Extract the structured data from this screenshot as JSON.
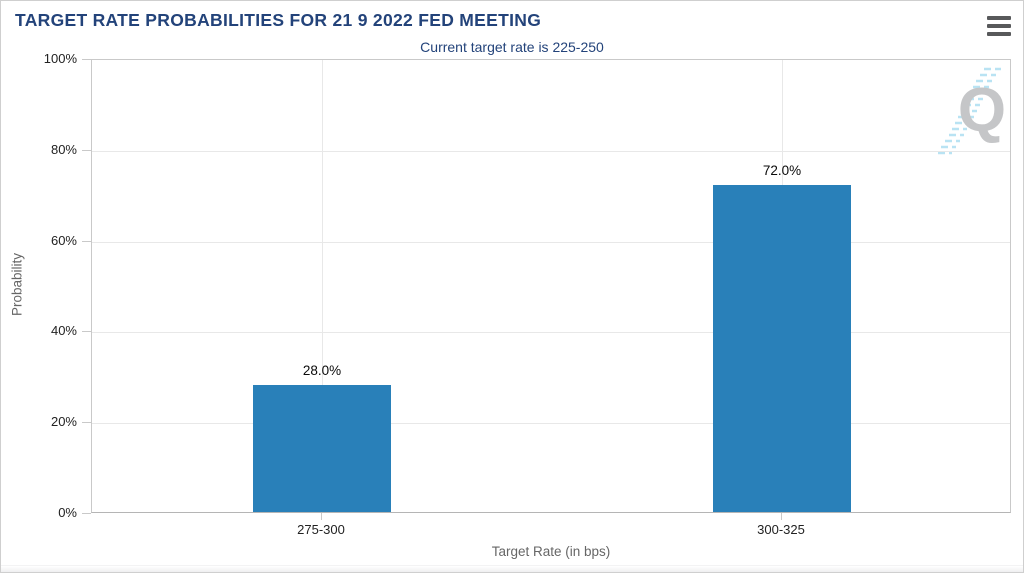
{
  "header": {
    "title": "TARGET RATE PROBABILITIES FOR 21 9 2022 FED MEETING",
    "menu_icon": "hamburger"
  },
  "chart_data": {
    "type": "bar",
    "subtitle": "Current target rate is 225-250",
    "categories": [
      "275-300",
      "300-325"
    ],
    "values": [
      28.0,
      72.0
    ],
    "value_labels": [
      "28.0%",
      "72.0%"
    ],
    "xlabel": "Target Rate (in bps)",
    "ylabel": "Probability",
    "ylim": [
      0,
      100
    ],
    "y_tick_labels": [
      "100%",
      "80%",
      "60%",
      "40%",
      "20%",
      "0%"
    ],
    "grid": true,
    "legend_position": "none",
    "bar_color": "#2980b9"
  },
  "watermark": {
    "letter": "Q"
  },
  "colors": {
    "title_text": "#23437a",
    "subtitle_text": "#23437a",
    "bar": "#2980b9",
    "axis_tick_text": "#222222",
    "axis_title_text": "#666666",
    "gridline": "#e8e8e8",
    "plot_border": "#c9c9c9",
    "watermark_letter": "#c5c6c8",
    "watermark_dashes": "#b9e3f3"
  }
}
